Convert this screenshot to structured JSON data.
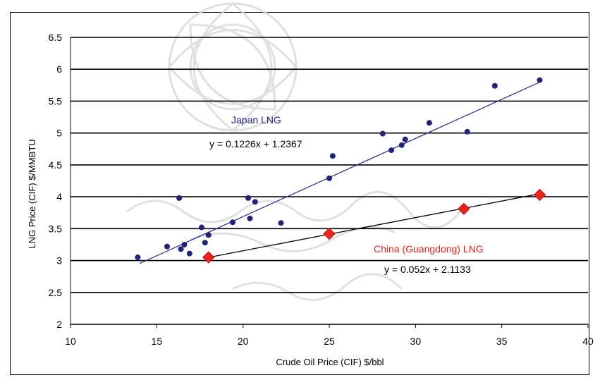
{
  "header_strip": "",
  "chart_data": {
    "type": "scatter",
    "title": "",
    "xlabel": "Crude Oil Price (CIF) $/bbl",
    "ylabel": "LNG Price (CIF) $/MMBTU",
    "xlim": [
      10,
      40
    ],
    "ylim": [
      2,
      6.5
    ],
    "x_ticks": [
      "10",
      "15",
      "20",
      "25",
      "30",
      "35",
      "40"
    ],
    "y_ticks": [
      "2",
      "2.5",
      "3",
      "3.5",
      "4",
      "4.5",
      "5",
      "5.5",
      "6",
      "6.5"
    ],
    "grid": "horizontal",
    "series": [
      {
        "name": "Japan LNG",
        "color": "#1f237a",
        "marker": "circle",
        "points": [
          [
            13.9,
            3.05
          ],
          [
            15.6,
            3.22
          ],
          [
            16.3,
            3.98
          ],
          [
            16.4,
            3.18
          ],
          [
            16.6,
            3.25
          ],
          [
            16.9,
            3.11
          ],
          [
            17.6,
            3.52
          ],
          [
            17.8,
            3.28
          ],
          [
            18.0,
            3.4
          ],
          [
            19.4,
            3.6
          ],
          [
            20.3,
            3.98
          ],
          [
            20.4,
            3.66
          ],
          [
            20.7,
            3.92
          ],
          [
            22.2,
            3.59
          ],
          [
            25.0,
            4.29
          ],
          [
            25.2,
            4.64
          ],
          [
            28.1,
            4.99
          ],
          [
            28.6,
            4.73
          ],
          [
            29.2,
            4.81
          ],
          [
            29.4,
            4.9
          ],
          [
            30.8,
            5.16
          ],
          [
            33.0,
            5.02
          ],
          [
            34.6,
            5.74
          ],
          [
            37.2,
            5.83
          ]
        ],
        "trendline": {
          "equation": "y = 0.1226x + 1.2367",
          "slope": 0.1226,
          "intercept": 1.2367,
          "x_range": [
            14,
            37.2
          ]
        }
      },
      {
        "name": "China (Guangdong) LNG",
        "color": "#e8241c",
        "marker": "diamond",
        "points": [
          [
            18.0,
            3.05
          ],
          [
            25.0,
            3.42
          ],
          [
            32.8,
            3.81
          ],
          [
            37.2,
            4.03
          ]
        ],
        "trendline": {
          "equation": "y = 0.052x + 2.1133",
          "slope": 0.052,
          "intercept": 2.1133,
          "x_range": [
            18,
            37.2
          ]
        }
      }
    ],
    "annotations": [
      {
        "text": "Japan LNG",
        "color": "#1f237a"
      },
      {
        "text": "y = 0.1226x + 1.2367",
        "color": "#000000"
      },
      {
        "text": "China (Guangdong) LNG",
        "color": "#e8241c"
      },
      {
        "text": "y = 0.052x + 2.1133",
        "color": "#000000"
      }
    ]
  }
}
